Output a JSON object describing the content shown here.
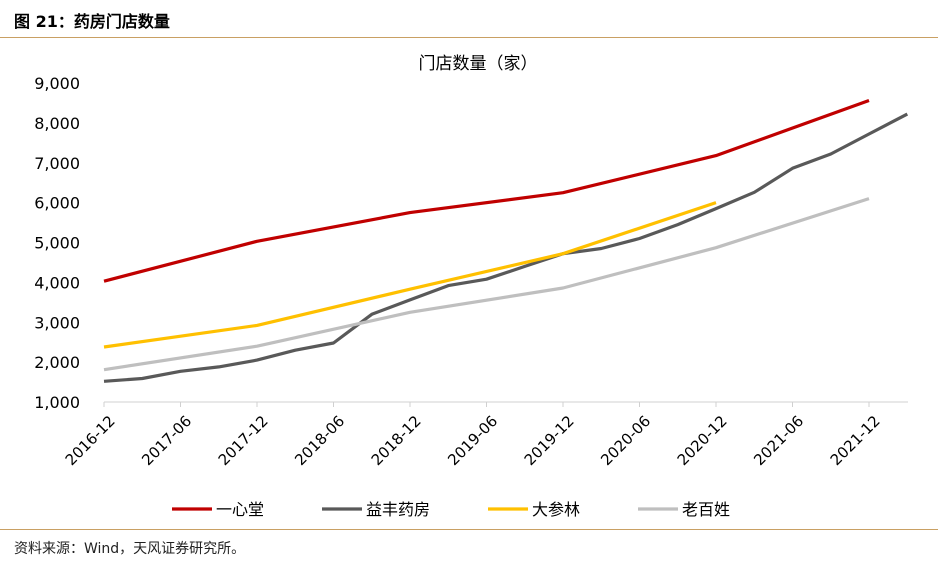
{
  "figure": {
    "title": "图 21：药房门店数量",
    "source": "资料来源：Wind，天风证券研究所。"
  },
  "chart_data": {
    "type": "line",
    "title": "门店数量（家）",
    "xlabel": "",
    "ylabel": "",
    "ylim": [
      1000,
      9000
    ],
    "yticks": [
      1000,
      2000,
      3000,
      4000,
      5000,
      6000,
      7000,
      8000,
      9000
    ],
    "ytick_labels": [
      "1,000",
      "2,000",
      "3,000",
      "4,000",
      "5,000",
      "6,000",
      "7,000",
      "8,000",
      "9,000"
    ],
    "xticks": [
      "2016-12",
      "2017-06",
      "2017-12",
      "2018-06",
      "2018-12",
      "2019-06",
      "2019-12",
      "2020-06",
      "2020-12",
      "2021-06",
      "2021-12"
    ],
    "grid": false,
    "legend_position": "bottom",
    "series": [
      {
        "name": "一心堂",
        "color": "#c00000",
        "points": [
          [
            "2016-12",
            4030
          ],
          [
            "2017-12",
            5030
          ],
          [
            "2018-12",
            5750
          ],
          [
            "2019-12",
            6250
          ],
          [
            "2020-12",
            7180
          ],
          [
            "2021-12",
            8560
          ]
        ]
      },
      {
        "name": "益丰药房",
        "color": "#595959",
        "points": [
          [
            "2016-12",
            1520
          ],
          [
            "2017-03",
            1590
          ],
          [
            "2017-06",
            1770
          ],
          [
            "2017-09",
            1880
          ],
          [
            "2017-12",
            2050
          ],
          [
            "2018-03",
            2300
          ],
          [
            "2018-06",
            2480
          ],
          [
            "2018-09",
            3200
          ],
          [
            "2018-12",
            3560
          ],
          [
            "2019-03",
            3920
          ],
          [
            "2019-06",
            4080
          ],
          [
            "2019-09",
            4400
          ],
          [
            "2019-12",
            4720
          ],
          [
            "2020-03",
            4850
          ],
          [
            "2020-06",
            5100
          ],
          [
            "2020-09",
            5450
          ],
          [
            "2020-12",
            5850
          ],
          [
            "2021-03",
            6260
          ],
          [
            "2021-06",
            6860
          ],
          [
            "2021-09",
            7220
          ],
          [
            "2021-12",
            7720
          ],
          [
            "2022-03",
            8220
          ]
        ]
      },
      {
        "name": "大参林",
        "color": "#ffc000",
        "points": [
          [
            "2016-12",
            2380
          ],
          [
            "2017-12",
            2920
          ],
          [
            "2018-12",
            3830
          ],
          [
            "2019-12",
            4720
          ],
          [
            "2020-12",
            6000
          ]
        ]
      },
      {
        "name": "老百姓",
        "color": "#bfbfbf",
        "points": [
          [
            "2016-12",
            1810
          ],
          [
            "2017-12",
            2400
          ],
          [
            "2018-12",
            3250
          ],
          [
            "2019-12",
            3860
          ],
          [
            "2020-12",
            4870
          ],
          [
            "2021-12",
            6100
          ]
        ]
      }
    ]
  }
}
